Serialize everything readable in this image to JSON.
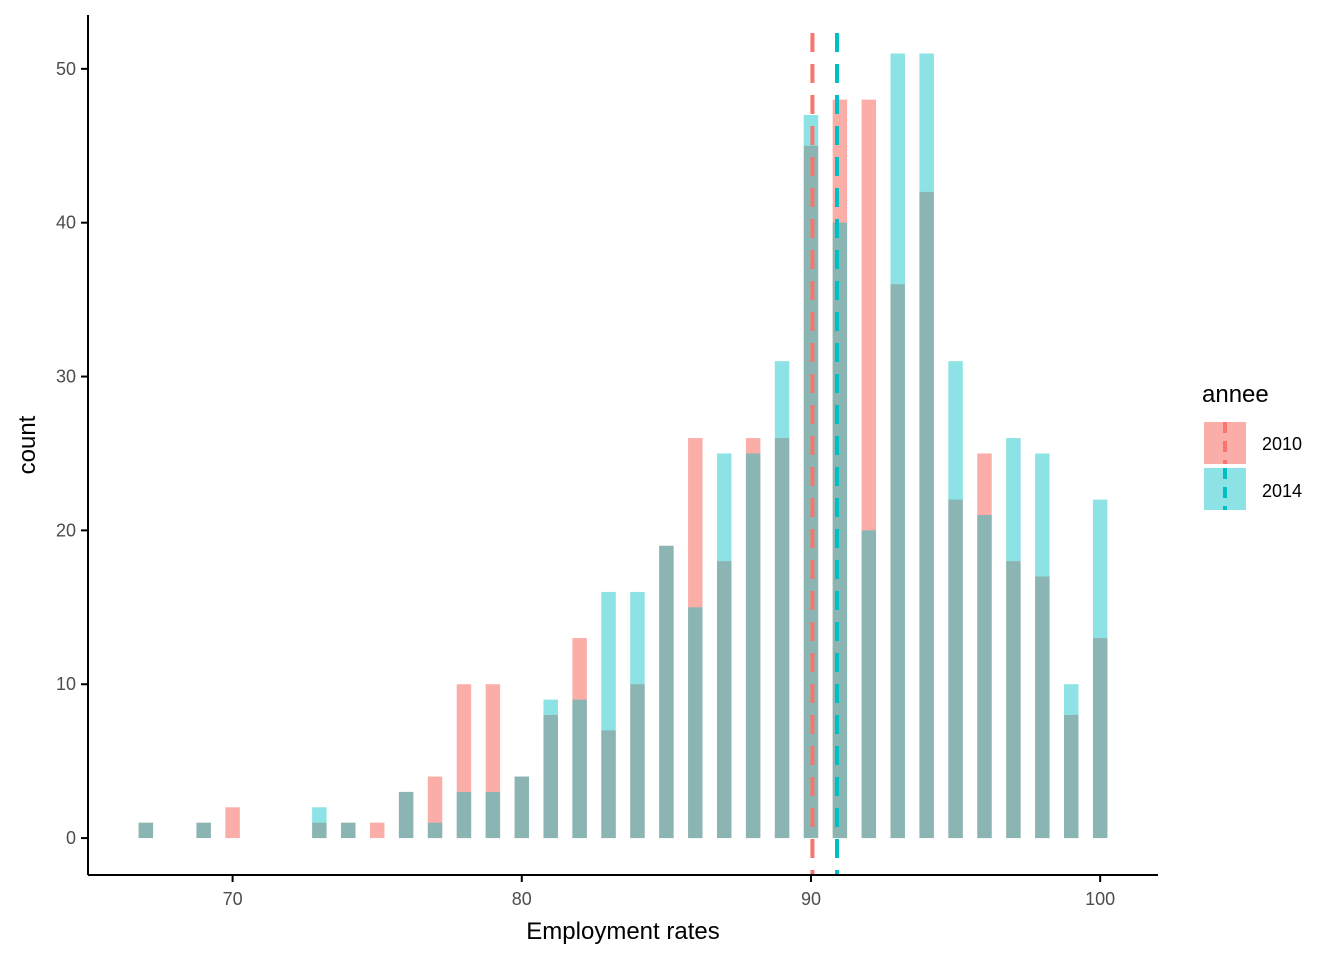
{
  "chart_data": {
    "type": "bar",
    "xlabel": "Employment rates",
    "ylabel": "count",
    "xlim": [
      65,
      102
    ],
    "ylim": [
      -2.4,
      53.5
    ],
    "x_ticks": [
      70,
      80,
      90,
      100
    ],
    "y_ticks": [
      0,
      10,
      20,
      30,
      40,
      50
    ],
    "grid": false,
    "legend": {
      "title": "annee",
      "position": "right",
      "entries": [
        "2010",
        "2014"
      ]
    },
    "colors": {
      "2010": "#F8766D",
      "2014": "#00BFC4",
      "overlap": "#8AB3B0",
      "axis": "#000000"
    },
    "bar_width": 0.5,
    "x": [
      67,
      69,
      70,
      73,
      74,
      75,
      76,
      77,
      78,
      79,
      80,
      81,
      82,
      83,
      84,
      85,
      86,
      87,
      88,
      89,
      90,
      91,
      92,
      93,
      94,
      95,
      96,
      97,
      98,
      99,
      100
    ],
    "series": [
      {
        "name": "2010",
        "values": [
          1,
          1,
          2,
          1,
          1,
          1,
          3,
          4,
          10,
          10,
          4,
          8,
          13,
          7,
          10,
          19,
          26,
          18,
          26,
          26,
          45,
          48,
          48,
          36,
          42,
          22,
          25,
          18,
          17,
          8,
          13
        ],
        "mean": 90.05
      },
      {
        "name": "2014",
        "values": [
          1,
          1,
          0,
          2,
          1,
          0,
          3,
          1,
          3,
          3,
          4,
          9,
          9,
          16,
          16,
          19,
          15,
          25,
          25,
          31,
          47,
          40,
          20,
          51,
          51,
          31,
          21,
          26,
          25,
          10,
          22
        ],
        "mean": 90.9
      }
    ]
  }
}
